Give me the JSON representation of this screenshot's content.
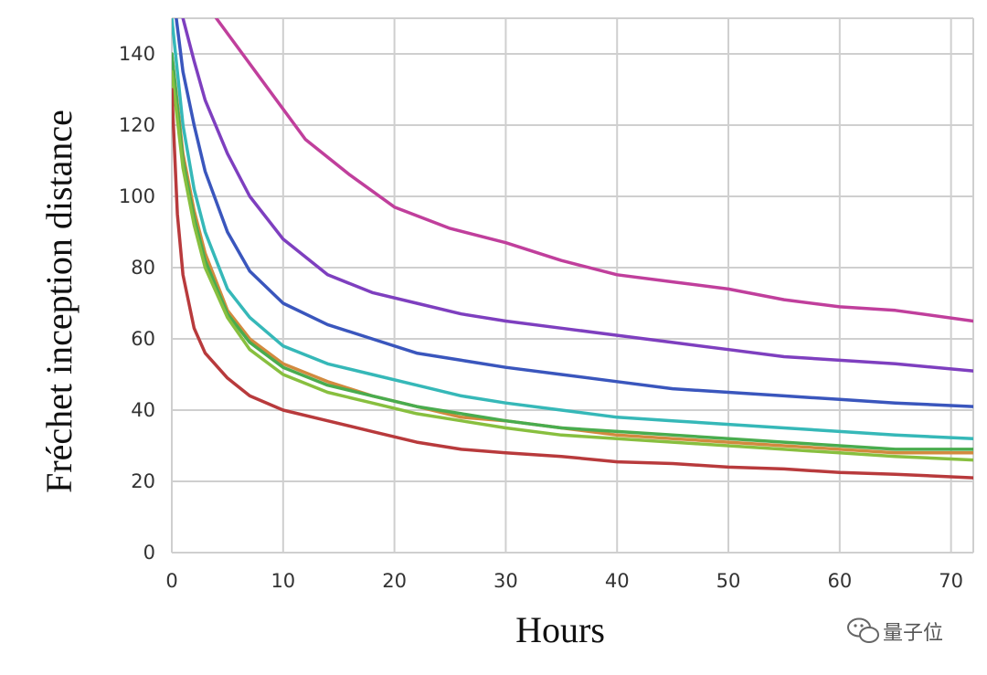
{
  "chart_data": {
    "type": "line",
    "xlabel": "Hours",
    "ylabel": "Fréchet inception distance",
    "xlim": [
      0,
      72
    ],
    "ylim": [
      0,
      150
    ],
    "xticks": [
      0,
      10,
      20,
      30,
      40,
      50,
      60,
      70
    ],
    "yticks": [
      0,
      20,
      40,
      60,
      80,
      100,
      120,
      140
    ],
    "grid": true,
    "legend": "none",
    "series": [
      {
        "color": "#c03f9c",
        "x": [
          0,
          4,
          8,
          12,
          16,
          20,
          25,
          30,
          35,
          40,
          45,
          50,
          55,
          60,
          65,
          72
        ],
        "y": [
          175,
          150,
          133,
          116,
          106,
          97,
          91,
          87,
          82,
          78,
          76,
          74,
          71,
          69,
          68,
          65
        ]
      },
      {
        "color": "#7e3fbf",
        "x": [
          0,
          1,
          2,
          3,
          5,
          7,
          10,
          14,
          18,
          22,
          26,
          30,
          35,
          40,
          45,
          50,
          55,
          60,
          65,
          72
        ],
        "y": [
          165,
          150,
          138,
          127,
          112,
          100,
          88,
          78,
          73,
          70,
          67,
          65,
          63,
          61,
          59,
          57,
          55,
          54,
          53,
          51
        ]
      },
      {
        "color": "#3a56bd",
        "x": [
          0,
          1,
          2,
          3,
          5,
          7,
          10,
          14,
          18,
          22,
          26,
          30,
          35,
          40,
          45,
          50,
          55,
          60,
          65,
          72
        ],
        "y": [
          160,
          135,
          120,
          107,
          90,
          79,
          70,
          64,
          60,
          56,
          54,
          52,
          50,
          48,
          46,
          45,
          44,
          43,
          42,
          41
        ]
      },
      {
        "color": "#36b8b8",
        "x": [
          0,
          1,
          2,
          3,
          5,
          7,
          10,
          14,
          18,
          22,
          26,
          30,
          35,
          40,
          45,
          50,
          55,
          60,
          65,
          72
        ],
        "y": [
          150,
          120,
          102,
          90,
          74,
          66,
          58,
          53,
          50,
          47,
          44,
          42,
          40,
          38,
          37,
          36,
          35,
          34,
          33,
          32
        ]
      },
      {
        "color": "#d28a3e",
        "x": [
          0,
          1,
          2,
          3,
          5,
          7,
          10,
          14,
          18,
          22,
          26,
          30,
          35,
          40,
          45,
          50,
          55,
          60,
          65,
          72
        ],
        "y": [
          140,
          112,
          96,
          84,
          68,
          60,
          53,
          48,
          44,
          41,
          38,
          37,
          35,
          33,
          32,
          31,
          30,
          29,
          28,
          28
        ]
      },
      {
        "color": "#49ac4e",
        "x": [
          0,
          1,
          2,
          3,
          5,
          7,
          10,
          14,
          18,
          22,
          26,
          30,
          35,
          40,
          45,
          50,
          55,
          60,
          65,
          72
        ],
        "y": [
          140,
          110,
          94,
          82,
          67,
          59,
          52,
          47,
          44,
          41,
          39,
          37,
          35,
          34,
          33,
          32,
          31,
          30,
          29,
          29
        ]
      },
      {
        "color": "#88bf3f",
        "x": [
          0,
          1,
          2,
          3,
          5,
          7,
          10,
          14,
          18,
          22,
          26,
          30,
          35,
          40,
          45,
          50,
          55,
          60,
          65,
          72
        ],
        "y": [
          135,
          108,
          92,
          80,
          66,
          57,
          50,
          45,
          42,
          39,
          37,
          35,
          33,
          32,
          31,
          30,
          29,
          28,
          27,
          26
        ]
      },
      {
        "color": "#b83a3c",
        "x": [
          0,
          0.5,
          1,
          2,
          3,
          5,
          7,
          10,
          14,
          18,
          22,
          26,
          30,
          35,
          40,
          45,
          50,
          55,
          60,
          65,
          72
        ],
        "y": [
          130,
          95,
          78,
          63,
          56,
          49,
          44,
          40,
          37,
          34,
          31,
          29,
          28,
          27,
          25.5,
          25,
          24,
          23.5,
          22.5,
          22,
          21
        ]
      }
    ]
  },
  "watermark": {
    "text": "量子位",
    "icon": "wechat-icon"
  }
}
